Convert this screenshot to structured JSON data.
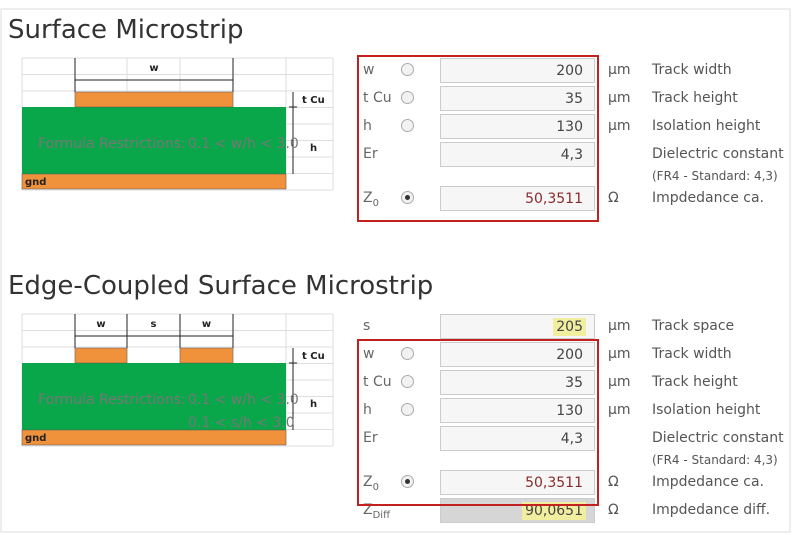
{
  "sections": [
    {
      "title": "Surface Microstrip",
      "diagram": {
        "widths": [
          "w"
        ],
        "t_cu": "t Cu",
        "h": "h",
        "gnd": "gnd"
      },
      "restrictions": {
        "caption": "Formula Restrictions:",
        "lines": [
          "0.1 < w/h < 3.0"
        ]
      },
      "rows": [
        {
          "label": "w",
          "radio": "off",
          "value": "200",
          "unit": "μm",
          "description": "Track width",
          "framed": true
        },
        {
          "label": "t Cu",
          "radio": "off",
          "value": "35",
          "unit": "μm",
          "description": "Track height",
          "framed": true
        },
        {
          "label": "h",
          "radio": "off",
          "value": "130",
          "unit": "μm",
          "description": "Isolation height",
          "framed": true
        },
        {
          "label": "Er",
          "value": "4,3",
          "description": "Dielectric constant",
          "note": "(FR4 - Standard: 4,3)",
          "framed": true
        },
        {
          "label": "Z",
          "label_sub": "0",
          "radio": "on",
          "value": "50,3511",
          "unit": "Ω",
          "description": "Impdedance ca.",
          "framed": true,
          "output": true
        }
      ]
    },
    {
      "title": "Edge-Coupled Surface Microstrip",
      "diagram": {
        "widths": [
          "w",
          "s",
          "w"
        ],
        "t_cu": "t Cu",
        "h": "h",
        "gnd": "gnd"
      },
      "restrictions": {
        "caption": "Formula Restrictions:",
        "lines": [
          "0.1 < w/h < 3.0",
          "0.1 < s/h < 3.0"
        ]
      },
      "rows": [
        {
          "label": "s",
          "value": "205",
          "unit": "μm",
          "description": "Track space",
          "highlight": true
        },
        {
          "label": "w",
          "radio": "off",
          "value": "200",
          "unit": "μm",
          "description": "Track width",
          "framed": true
        },
        {
          "label": "t Cu",
          "radio": "off",
          "value": "35",
          "unit": "μm",
          "description": "Track height",
          "framed": true
        },
        {
          "label": "h",
          "radio": "off",
          "value": "130",
          "unit": "μm",
          "description": "Isolation height",
          "framed": true
        },
        {
          "label": "Er",
          "value": "4,3",
          "description": "Dielectric constant",
          "note": "(FR4 - Standard: 4,3)",
          "framed": true
        },
        {
          "label": "Z",
          "label_sub": "0",
          "radio": "on",
          "value": "50,3511",
          "unit": "Ω",
          "description": "Impdedance ca.",
          "framed": true,
          "output": true
        },
        {
          "label": "Z",
          "label_sub": "Diff",
          "value": "90,0651",
          "unit": "Ω",
          "description": "Impdedance diff.",
          "highlight": true,
          "readonly": true
        }
      ]
    }
  ]
}
